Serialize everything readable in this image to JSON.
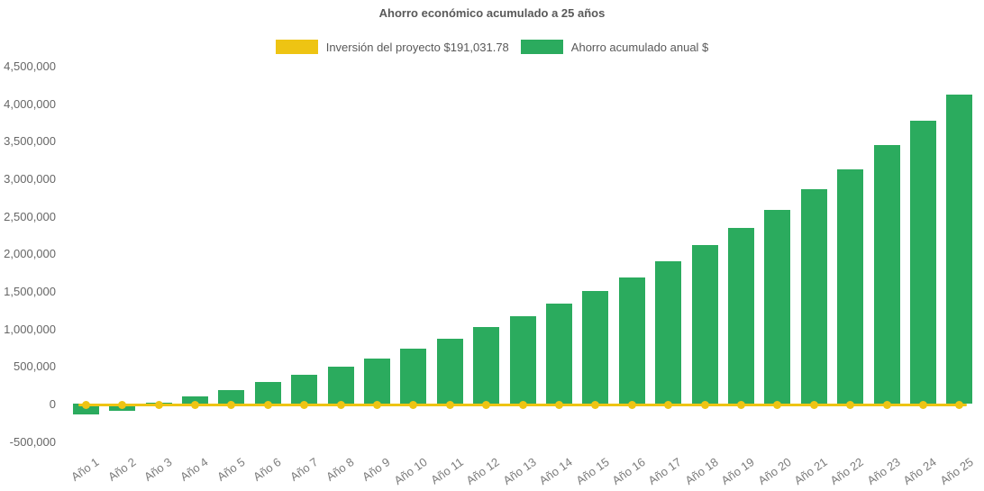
{
  "colors": {
    "bar_green": "#2bab5e",
    "line_yellow": "#eec413",
    "title_text": "#595959",
    "axis_text": "#666666",
    "xlabel_text": "#7c7c7c"
  },
  "chart_data": {
    "type": "bar",
    "title": "Ahorro económico acumulado a 25 años",
    "legend_position": "top",
    "grid": false,
    "categories": [
      "Año 1",
      "Año 2",
      "Año 3",
      "Año 4",
      "Año 5",
      "Año 6",
      "Año 7",
      "Año 8",
      "Año 9",
      "Año 10",
      "Año 11",
      "Año 12",
      "Año 13",
      "Año 14",
      "Año 15",
      "Año 16",
      "Año 17",
      "Año 18",
      "Año 19",
      "Año 20",
      "Año 21",
      "Año 22",
      "Año 23",
      "Año 24",
      "Año 25"
    ],
    "series": [
      {
        "name": "Inversión del proyecto $191,031.78",
        "type": "line",
        "color_key": "line_yellow",
        "investment_amount_shown_in_legend": 191031.78,
        "line_plotted_at_value": 0
      },
      {
        "name": "Ahorro acumulado anual $",
        "type": "bar",
        "color_key": "bar_green",
        "values": [
          -145000,
          -90000,
          15000,
          100000,
          180000,
          285000,
          385000,
          490000,
          600000,
          730000,
          865000,
          1015000,
          1165000,
          1335000,
          1495000,
          1680000,
          1895000,
          2110000,
          2340000,
          2580000,
          2860000,
          3120000,
          3445000,
          3770000,
          4115000
        ]
      }
    ],
    "ylim": [
      -500000,
      4500000
    ],
    "ytick_step": 500000,
    "ytick_labels": [
      "4,500,000",
      "4,000,000",
      "3,500,000",
      "3,000,000",
      "2,500,000",
      "2,000,000",
      "1,500,000",
      "1,000,000",
      "500,000",
      "0",
      "-500,000"
    ]
  }
}
